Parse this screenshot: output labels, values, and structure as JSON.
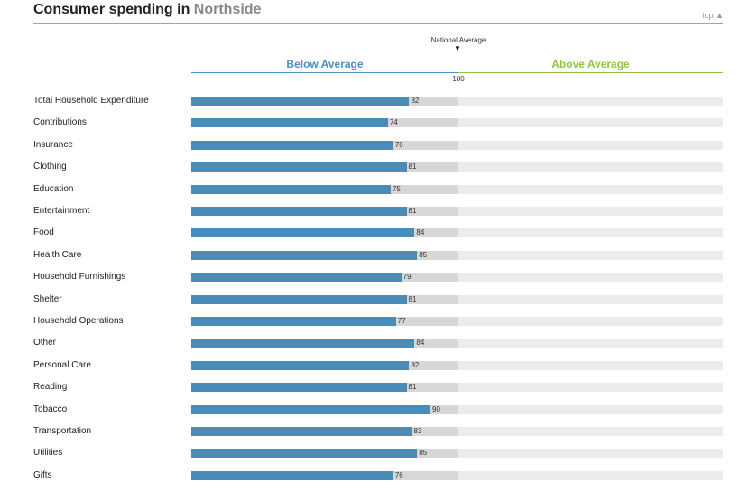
{
  "header": {
    "title_prefix": "Consumer spending in",
    "place": "Northside",
    "top_link": "top ▲"
  },
  "legend": {
    "national_average": "National Average",
    "below": "Below Average",
    "above": "Above Average",
    "center_tick": "100"
  },
  "colors": {
    "bar": "#4a8cb8",
    "below_accent": "#4a90c0",
    "above_accent": "#8cc63f"
  },
  "chart_data": {
    "type": "bar",
    "orientation": "horizontal",
    "categories": [
      "Total Household Expenditure",
      "Contributions",
      "Insurance",
      "Clothing",
      "Education",
      "Entertainment",
      "Food",
      "Health Care",
      "Household Furnishings",
      "Shelter",
      "Household Operations",
      "Other",
      "Personal Care",
      "Reading",
      "Tobacco",
      "Transportation",
      "Utilities",
      "Gifts"
    ],
    "values": [
      82,
      74,
      76,
      81,
      75,
      81,
      84,
      85,
      79,
      81,
      77,
      84,
      82,
      81,
      90,
      83,
      85,
      76
    ],
    "xlim": [
      0,
      200
    ],
    "reference_value": 100
  }
}
